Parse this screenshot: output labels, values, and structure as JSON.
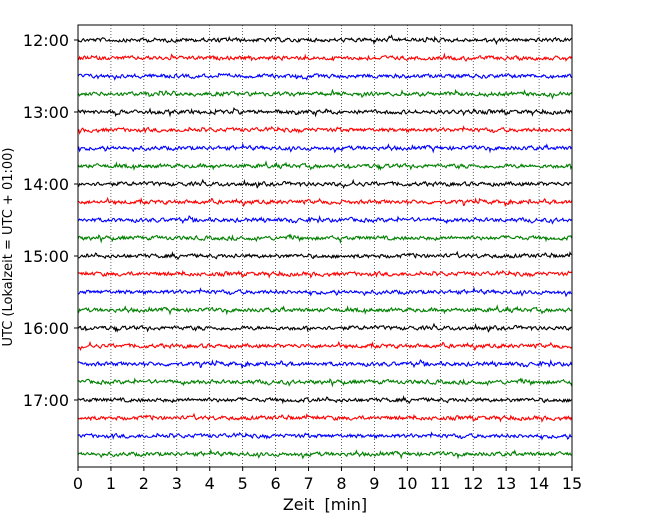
{
  "chart_data": {
    "type": "line",
    "title": "",
    "xlabel": "Zeit  [min]",
    "ylabel": "UTC (Lokalzeit = UTC + 01:00)",
    "xlim": [
      0,
      15
    ],
    "x_ticks": [
      0,
      1,
      2,
      3,
      4,
      5,
      6,
      7,
      8,
      9,
      10,
      11,
      12,
      13,
      14,
      15
    ],
    "x_tick_labels": [
      "0",
      "1",
      "2",
      "3",
      "4",
      "5",
      "6",
      "7",
      "8",
      "9",
      "10",
      "11",
      "12",
      "13",
      "14",
      "15"
    ],
    "y_tick_labels": [
      "12:00",
      "13:00",
      "14:00",
      "15:00",
      "16:00",
      "17:00"
    ],
    "trace_interval_min": 15,
    "traces": [
      {
        "start": "12:00",
        "color": "#000000"
      },
      {
        "start": "12:15",
        "color": "#ff0000"
      },
      {
        "start": "12:30",
        "color": "#0000ff"
      },
      {
        "start": "12:45",
        "color": "#008000"
      },
      {
        "start": "13:00",
        "color": "#000000"
      },
      {
        "start": "13:15",
        "color": "#ff0000"
      },
      {
        "start": "13:30",
        "color": "#0000ff"
      },
      {
        "start": "13:45",
        "color": "#008000"
      },
      {
        "start": "14:00",
        "color": "#000000"
      },
      {
        "start": "14:15",
        "color": "#ff0000"
      },
      {
        "start": "14:30",
        "color": "#0000ff"
      },
      {
        "start": "14:45",
        "color": "#008000"
      },
      {
        "start": "15:00",
        "color": "#000000"
      },
      {
        "start": "15:15",
        "color": "#ff0000"
      },
      {
        "start": "15:30",
        "color": "#0000ff"
      },
      {
        "start": "15:45",
        "color": "#008000"
      },
      {
        "start": "16:00",
        "color": "#000000"
      },
      {
        "start": "16:15",
        "color": "#ff0000"
      },
      {
        "start": "16:30",
        "color": "#0000ff"
      },
      {
        "start": "16:45",
        "color": "#008000"
      },
      {
        "start": "17:00",
        "color": "#000000"
      },
      {
        "start": "17:15",
        "color": "#ff0000"
      },
      {
        "start": "17:30",
        "color": "#0000ff"
      },
      {
        "start": "17:45",
        "color": "#008000"
      }
    ],
    "grid": "vertical dotted at each minute",
    "legend": "none"
  }
}
